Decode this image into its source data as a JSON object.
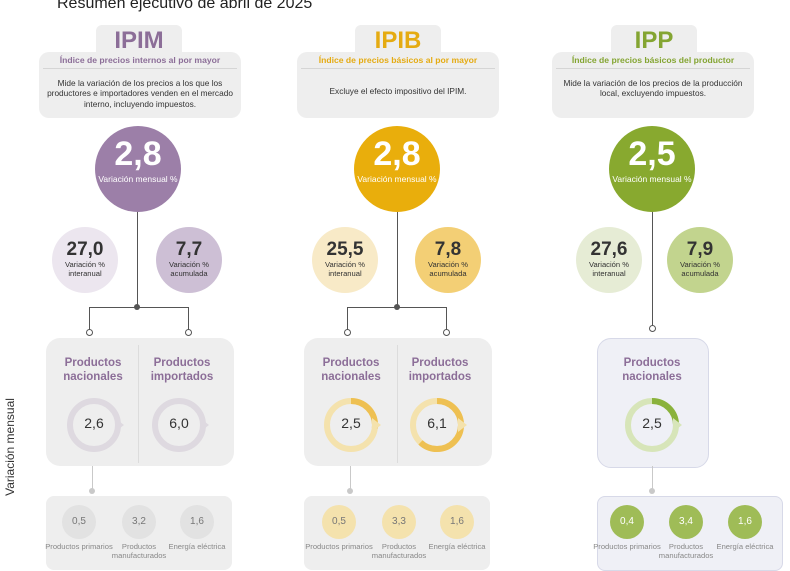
{
  "title": "Resumen ejecutivo de abril de 2025",
  "side_label": "Variación mensual",
  "colors": {
    "ipim": "#8c6e98",
    "ipib": "#e5ab12",
    "ipp": "#84a532"
  },
  "indices": [
    {
      "name": "IPIM",
      "subtitle": "Índice de precios internos al por mayor",
      "description": "Mide la variación de los precios a los que los productores e importadores venden en el mercado interno, incluyendo impuestos.",
      "monthly": "2,8",
      "monthly_label": "Variación mensual %",
      "interannual": "27,0",
      "interannual_label": "Variación % interanual",
      "accumulated": "7,7",
      "accumulated_label": "Variación % acumulada",
      "products": [
        {
          "label": "Productos nacionales",
          "value": "2,6",
          "progress": 0.0
        },
        {
          "label": "Productos importados",
          "value": "6,0",
          "progress": 0.0
        }
      ],
      "breakdown": [
        {
          "value": "0,5",
          "label": "Productos primarios"
        },
        {
          "value": "3,2",
          "label": "Productos manufacturados"
        },
        {
          "value": "1,6",
          "label": "Energía eléctrica"
        }
      ]
    },
    {
      "name": "IPIB",
      "subtitle": "Índice de precios básicos al por mayor",
      "description": "Excluye el efecto impositivo del IPIM.",
      "monthly": "2,8",
      "monthly_label": "Variación mensual %",
      "interannual": "25,5",
      "interannual_label": "Variación % interanual",
      "accumulated": "7,8",
      "accumulated_label": "Variación % acumulada",
      "products": [
        {
          "label": "Productos nacionales",
          "value": "2,5",
          "progress": 0.27
        },
        {
          "label": "Productos importados",
          "value": "6,1",
          "progress": 0.62
        }
      ],
      "breakdown": [
        {
          "value": "0,5",
          "label": "Productos primarios"
        },
        {
          "value": "3,3",
          "label": "Productos manufacturados"
        },
        {
          "value": "1,6",
          "label": "Energía eléctrica"
        }
      ]
    },
    {
      "name": "IPP",
      "subtitle": "Índice de precios básicos del productor",
      "description": "Mide la variación de los precios de la producción local, excluyendo impuestos.",
      "monthly": "2,5",
      "monthly_label": "Variación mensual %",
      "interannual": "27,6",
      "interannual_label": "Variación % interanual",
      "accumulated": "7,9",
      "accumulated_label": "Variación % acumulada",
      "products": [
        {
          "label": "Productos nacionales",
          "value": "2,5",
          "progress": 0.26
        }
      ],
      "breakdown": [
        {
          "value": "0,4",
          "label": "Productos primarios"
        },
        {
          "value": "3,4",
          "label": "Productos manufacturados"
        },
        {
          "value": "1,6",
          "label": "Energía eléctrica"
        }
      ]
    }
  ]
}
